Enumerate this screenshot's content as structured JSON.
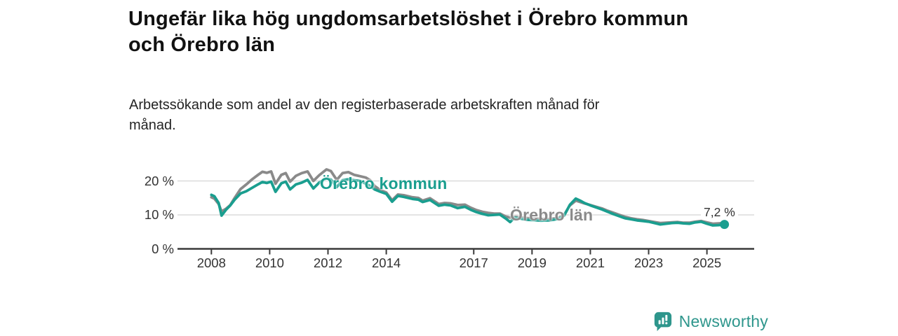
{
  "header": {
    "title": "Ungefär lika hög ungdomsarbetslöshet i Örebro kommun\noch Örebro län",
    "subtitle": "Arbetssökande som andel av den registerbaserade arbetskraften månad för\nmånad."
  },
  "chart_data": {
    "type": "line",
    "unit": "%",
    "ylim": [
      0,
      25
    ],
    "grid": "horizontal-only",
    "yticks": [
      {
        "value": 0,
        "label": "0 %"
      },
      {
        "value": 10,
        "label": "10 %"
      },
      {
        "value": 20,
        "label": "20 %"
      }
    ],
    "xticks": [
      2008,
      2010,
      2012,
      2014,
      2017,
      2019,
      2021,
      2023,
      2025
    ],
    "x": [
      2008.0,
      2008.1,
      2008.25,
      2008.35,
      2008.5,
      2008.65,
      2008.8,
      2009.0,
      2009.2,
      2009.4,
      2009.6,
      2009.75,
      2009.9,
      2010.05,
      2010.2,
      2010.4,
      2010.55,
      2010.7,
      2010.9,
      2011.1,
      2011.3,
      2011.5,
      2011.7,
      2011.95,
      2012.1,
      2012.3,
      2012.5,
      2012.7,
      2012.9,
      2013.1,
      2013.3,
      2013.45,
      2013.6,
      2013.8,
      2014.0,
      2014.2,
      2014.4,
      2014.6,
      2014.9,
      2015.1,
      2015.25,
      2015.5,
      2015.8,
      2016.0,
      2016.2,
      2016.45,
      2016.7,
      2016.9,
      2017.1,
      2017.3,
      2017.5,
      2017.7,
      2017.9,
      2018.1,
      2018.25,
      2018.4,
      2018.6,
      2018.8,
      2019.0,
      2019.3,
      2019.6,
      2019.9,
      2020.1,
      2020.3,
      2020.5,
      2020.65,
      2020.8,
      2021.0,
      2021.2,
      2021.4,
      2021.6,
      2021.8,
      2022.0,
      2022.2,
      2022.4,
      2022.6,
      2022.8,
      2023.0,
      2023.2,
      2023.4,
      2023.6,
      2023.8,
      2024.0,
      2024.2,
      2024.4,
      2024.6,
      2024.8,
      2025.0,
      2025.2,
      2025.4,
      2025.6
    ],
    "series": [
      {
        "name": "Örebro län",
        "color": "#8A8A8A",
        "values": [
          15.2,
          14.8,
          13.2,
          11.0,
          11.8,
          12.9,
          15.0,
          17.6,
          19.0,
          20.5,
          21.8,
          22.7,
          22.4,
          22.8,
          19.2,
          21.8,
          22.3,
          19.8,
          21.5,
          22.3,
          22.8,
          20.0,
          21.7,
          23.4,
          22.9,
          20.3,
          22.3,
          22.6,
          21.8,
          21.4,
          21.0,
          20.2,
          18.5,
          17.3,
          16.6,
          14.3,
          16.0,
          15.8,
          15.2,
          15.0,
          14.2,
          14.9,
          13.2,
          13.5,
          13.4,
          12.9,
          13.0,
          12.1,
          11.4,
          10.9,
          10.6,
          10.4,
          10.4,
          9.5,
          9.2,
          9.4,
          9.3,
          9.1,
          9.0,
          8.8,
          8.8,
          9.1,
          10.0,
          12.8,
          14.2,
          13.8,
          13.4,
          12.9,
          12.4,
          11.9,
          11.2,
          10.6,
          10.0,
          9.4,
          9.0,
          8.7,
          8.5,
          8.2,
          7.9,
          7.6,
          7.7,
          7.8,
          7.9,
          7.7,
          7.7,
          8.0,
          8.2,
          7.8,
          7.4,
          7.5,
          7.6
        ]
      },
      {
        "name": "Örebro kommun",
        "color": "#1A9E8F",
        "values": [
          15.9,
          15.5,
          13.5,
          9.8,
          11.5,
          12.8,
          14.5,
          16.3,
          17.0,
          18.0,
          19.0,
          19.7,
          19.4,
          19.8,
          16.8,
          19.3,
          19.8,
          17.5,
          19.0,
          19.5,
          20.3,
          17.8,
          19.5,
          20.8,
          20.4,
          18.2,
          20.2,
          20.5,
          20.2,
          20.0,
          19.2,
          18.5,
          17.5,
          16.8,
          16.2,
          13.9,
          15.6,
          15.3,
          14.7,
          14.5,
          13.8,
          14.4,
          12.7,
          13.0,
          12.8,
          12.0,
          12.4,
          11.5,
          10.8,
          10.3,
          9.9,
          10.0,
          10.1,
          8.9,
          7.9,
          9.2,
          8.9,
          8.6,
          8.5,
          8.3,
          8.4,
          8.8,
          9.8,
          13.0,
          14.8,
          14.2,
          13.5,
          12.8,
          12.2,
          11.6,
          10.9,
          10.2,
          9.6,
          9.0,
          8.7,
          8.4,
          8.2,
          8.0,
          7.6,
          7.2,
          7.4,
          7.6,
          7.7,
          7.5,
          7.4,
          7.8,
          8.0,
          7.4,
          6.9,
          7.0,
          7.2
        ]
      }
    ],
    "end_label": {
      "text": "7,2 %",
      "value": 7.2,
      "series": "Örebro kommun"
    }
  },
  "colors": {
    "kommun": "#1A9E8F",
    "lan": "#8A8A8A",
    "axis": "#3A3A3A",
    "grid": "#DBDBDB",
    "brand": "#2E968C"
  },
  "footer": {
    "brand": "Newsworthy"
  }
}
